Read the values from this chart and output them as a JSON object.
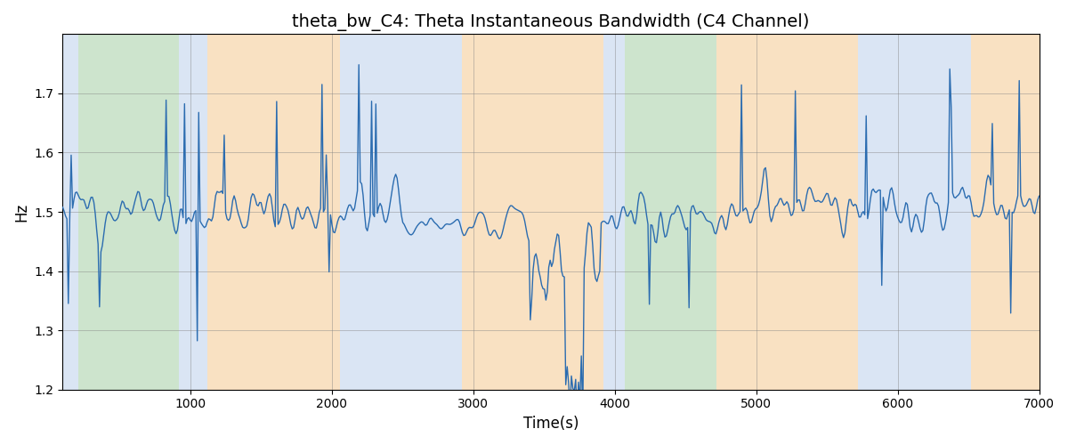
{
  "title": "theta_bw_C4: Theta Instantaneous Bandwidth (C4 Channel)",
  "xlabel": "Time(s)",
  "ylabel": "Hz",
  "xlim": [
    100,
    7000
  ],
  "ylim": [
    1.2,
    1.8
  ],
  "yticks": [
    1.2,
    1.3,
    1.4,
    1.5,
    1.6,
    1.7
  ],
  "xticks": [
    1000,
    2000,
    3000,
    4000,
    5000,
    6000,
    7000
  ],
  "line_color": "#2b6cb0",
  "line_width": 1.0,
  "bg_regions": [
    {
      "xmin": 100,
      "xmax": 210,
      "color": "#aec6e8",
      "alpha": 0.45
    },
    {
      "xmin": 210,
      "xmax": 920,
      "color": "#90c490",
      "alpha": 0.45
    },
    {
      "xmin": 920,
      "xmax": 1120,
      "color": "#aec6e8",
      "alpha": 0.45
    },
    {
      "xmin": 1120,
      "xmax": 2060,
      "color": "#f5c990",
      "alpha": 0.55
    },
    {
      "xmin": 2060,
      "xmax": 2920,
      "color": "#aec6e8",
      "alpha": 0.45
    },
    {
      "xmin": 2920,
      "xmax": 3920,
      "color": "#f5c990",
      "alpha": 0.55
    },
    {
      "xmin": 3920,
      "xmax": 4070,
      "color": "#aec6e8",
      "alpha": 0.45
    },
    {
      "xmin": 4070,
      "xmax": 4720,
      "color": "#90c490",
      "alpha": 0.45
    },
    {
      "xmin": 4720,
      "xmax": 5720,
      "color": "#f5c990",
      "alpha": 0.55
    },
    {
      "xmin": 5720,
      "xmax": 6520,
      "color": "#aec6e8",
      "alpha": 0.45
    },
    {
      "xmin": 6520,
      "xmax": 7000,
      "color": "#f5c990",
      "alpha": 0.55
    }
  ],
  "seed": 12,
  "n_points": 690,
  "x_start": 100,
  "x_end": 7000,
  "base_value": 1.5,
  "noise_std": 0.045,
  "title_fontsize": 14
}
